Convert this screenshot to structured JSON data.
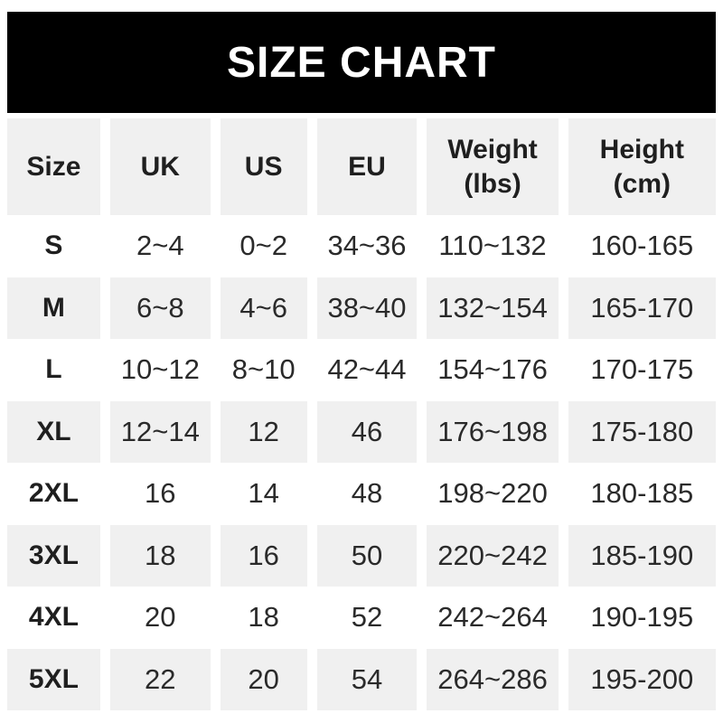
{
  "banner": {
    "title": "SIZE CHART",
    "bg_color": "#000000",
    "text_color": "#ffffff"
  },
  "table": {
    "columns": [
      {
        "label": "Size"
      },
      {
        "label": "UK"
      },
      {
        "label": "US"
      },
      {
        "label": "EU"
      },
      {
        "label": "Weight",
        "sub": "(lbs)"
      },
      {
        "label": "Height",
        "sub": "(cm)"
      }
    ],
    "rows": [
      {
        "size": "S",
        "uk": "2~4",
        "us": "0~2",
        "eu": "34~36",
        "weight": "110~132",
        "height": "160-165"
      },
      {
        "size": "M",
        "uk": "6~8",
        "us": "4~6",
        "eu": "38~40",
        "weight": "132~154",
        "height": "165-170"
      },
      {
        "size": "L",
        "uk": "10~12",
        "us": "8~10",
        "eu": "42~44",
        "weight": "154~176",
        "height": "170-175"
      },
      {
        "size": "XL",
        "uk": "12~14",
        "us": "12",
        "eu": "46",
        "weight": "176~198",
        "height": "175-180"
      },
      {
        "size": "2XL",
        "uk": "16",
        "us": "14",
        "eu": "48",
        "weight": "198~220",
        "height": "180-185"
      },
      {
        "size": "3XL",
        "uk": "18",
        "us": "16",
        "eu": "50",
        "weight": "220~242",
        "height": "185-190"
      },
      {
        "size": "4XL",
        "uk": "20",
        "us": "18",
        "eu": "52",
        "weight": "242~264",
        "height": "190-195"
      },
      {
        "size": "5XL",
        "uk": "22",
        "us": "20",
        "eu": "54",
        "weight": "264~286",
        "height": "195-200"
      }
    ],
    "colors": {
      "header_bg": "#f0f0f0",
      "row_alt_bg": "#f0f0f0",
      "row_bg": "#ffffff",
      "text": "#1f1f1f"
    }
  },
  "chart_data": {
    "type": "table",
    "title": "SIZE CHART",
    "columns": [
      "Size",
      "UK",
      "US",
      "EU",
      "Weight (lbs)",
      "Height (cm)"
    ],
    "rows": [
      [
        "S",
        "2~4",
        "0~2",
        "34~36",
        "110~132",
        "160-165"
      ],
      [
        "M",
        "6~8",
        "4~6",
        "38~40",
        "132~154",
        "165-170"
      ],
      [
        "L",
        "10~12",
        "8~10",
        "42~44",
        "154~176",
        "170-175"
      ],
      [
        "XL",
        "12~14",
        "12",
        "46",
        "176~198",
        "175-180"
      ],
      [
        "2XL",
        "16",
        "14",
        "48",
        "198~220",
        "180-185"
      ],
      [
        "3XL",
        "18",
        "16",
        "50",
        "220~242",
        "185-190"
      ],
      [
        "4XL",
        "20",
        "18",
        "52",
        "242~264",
        "190-195"
      ],
      [
        "5XL",
        "22",
        "20",
        "54",
        "264~286",
        "195-200"
      ]
    ]
  }
}
